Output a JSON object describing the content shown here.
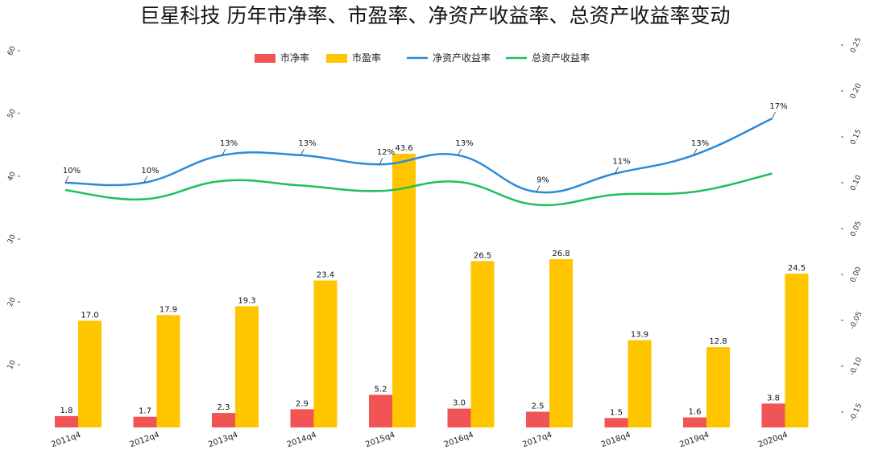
{
  "chart_data": {
    "type": "bar",
    "title": "巨星科技 历年市净率、市盈率、净资产收益率、总资产收益率变动",
    "categories": [
      "2011q4",
      "2012q4",
      "2013q4",
      "2014q4",
      "2015q4",
      "2016q4",
      "2017q4",
      "2018q4",
      "2019q4",
      "2020q4"
    ],
    "series": [
      {
        "name": "市净率",
        "type": "bar",
        "axis": "left",
        "color": "#f05454",
        "values": [
          1.8,
          1.7,
          2.3,
          2.9,
          5.2,
          3.0,
          2.5,
          1.5,
          1.6,
          3.8
        ],
        "labels": [
          "1.8",
          "1.7",
          "2.3",
          "2.9",
          "5.2",
          "3.0",
          "2.5",
          "1.5",
          "1.6",
          "3.8"
        ]
      },
      {
        "name": "市盈率",
        "type": "bar",
        "axis": "left",
        "color": "#ffc600",
        "values": [
          17.0,
          17.9,
          19.3,
          23.4,
          43.6,
          26.5,
          26.8,
          13.9,
          12.8,
          24.5
        ],
        "labels": [
          "17.0",
          "17.9",
          "19.3",
          "23.4",
          "43.6",
          "26.5",
          "26.8",
          "13.9",
          "12.8",
          "24.5"
        ]
      },
      {
        "name": "净资产收益率",
        "type": "line",
        "axis": "right",
        "color": "#2d8ad8",
        "values": [
          0.1,
          0.1,
          0.13,
          0.13,
          0.12,
          0.13,
          0.09,
          0.11,
          0.13,
          0.17
        ],
        "labels": [
          "10%",
          "10%",
          "13%",
          "13%",
          "12%",
          "13%",
          "9%",
          "11%",
          "13%",
          "17%"
        ]
      },
      {
        "name": "总资产收益率",
        "type": "line",
        "axis": "right",
        "color": "#1fbf5a",
        "values": [
          0.092,
          0.082,
          0.102,
          0.097,
          0.091,
          0.101,
          0.076,
          0.087,
          0.09,
          0.11
        ]
      }
    ],
    "y_left": {
      "ticks": [
        "10",
        "20",
        "30",
        "40",
        "50",
        "60"
      ],
      "tick_values": [
        10,
        20,
        30,
        40,
        50,
        60
      ],
      "ylim": [
        0,
        60
      ]
    },
    "y_right": {
      "ticks": [
        "0.25",
        "0.20",
        "0.15",
        "0.10",
        "0.05",
        "0.00",
        "-0.05",
        "-0.10",
        "-0.15"
      ],
      "tick_values": [
        0.25,
        0.2,
        0.15,
        0.1,
        0.05,
        0.0,
        -0.05,
        -0.1,
        -0.15
      ],
      "ylim": [
        -0.15,
        0.25
      ]
    },
    "legend_position": "top-center",
    "grid": false
  }
}
